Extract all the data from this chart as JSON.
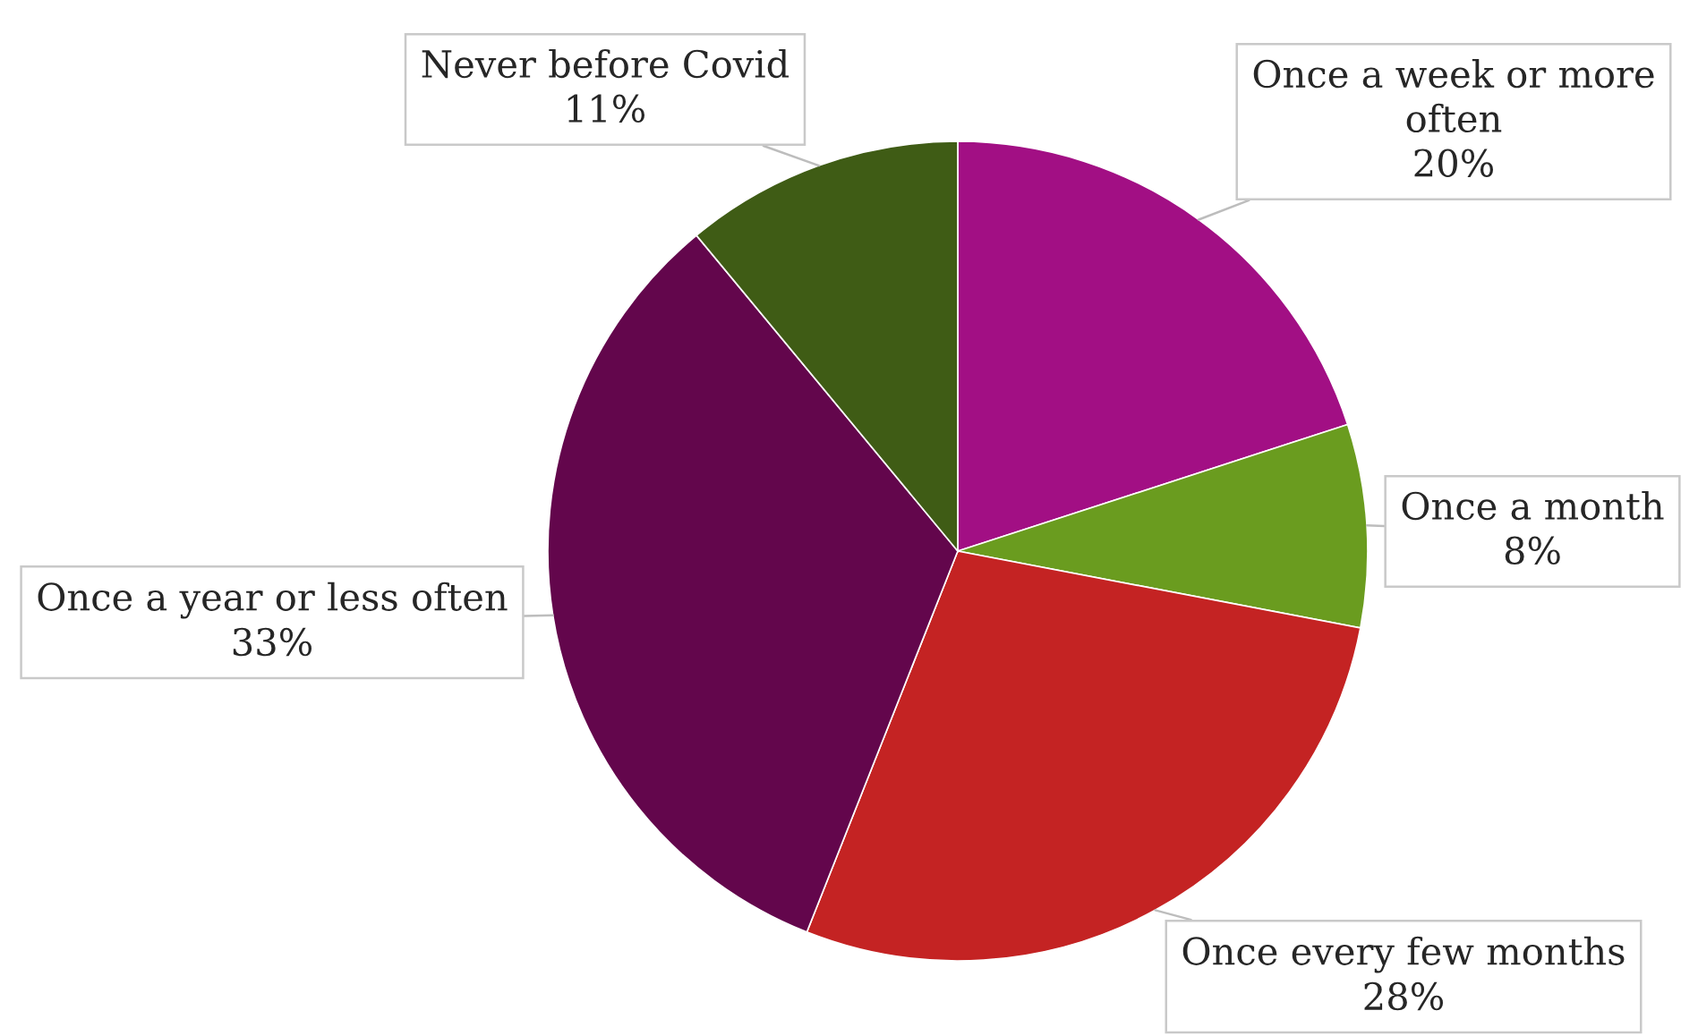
{
  "chart_data": {
    "type": "pie",
    "categories": [
      "Once a week or more often",
      "Once a month",
      "Once every few months",
      "Once a year or less often",
      "Never before Covid"
    ],
    "values": [
      20,
      8,
      28,
      33,
      11
    ],
    "value_labels": [
      "20%",
      "8%",
      "28%",
      "33%",
      "11%"
    ],
    "colors": [
      "#a20f84",
      "#6a9c1f",
      "#c42323",
      "#63064c",
      "#3f5c15"
    ]
  }
}
